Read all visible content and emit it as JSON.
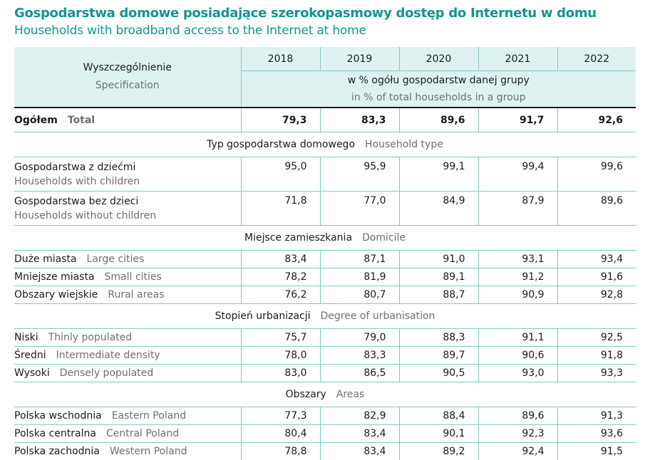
{
  "title_pl": "Gospodarstwa domowe posiadające szerokopasmowy dostęp do Internetu w domu",
  "title_en": "Households with broadband access to the Internet at home",
  "header": {
    "spec_pl": "Wyszczególnienie",
    "spec_en": "Specification",
    "years": [
      "2018",
      "2019",
      "2020",
      "2021",
      "2022"
    ],
    "unit_pl": "w % ogółu gospodarstw danej grupy",
    "unit_en": "in % of total households in a group"
  },
  "total": {
    "pl": "Ogółem",
    "en": "Total",
    "values": [
      "79,3",
      "83,3",
      "89,6",
      "91,7",
      "92,6"
    ]
  },
  "sections": [
    {
      "pl": "Typ gospodarstwa domowego",
      "en": "Household type",
      "rows": [
        {
          "pl": "Gospodarstwa z dziećmi",
          "en": "Households with children",
          "values": [
            "95,0",
            "95,9",
            "99,1",
            "99,4",
            "99,6"
          ]
        },
        {
          "pl": "Gospodarstwa bez dzieci",
          "en": "Households without children",
          "values": [
            "71,8",
            "77,0",
            "84,9",
            "87,9",
            "89,6"
          ]
        }
      ]
    },
    {
      "pl": "Miejsce zamieszkania",
      "en": "Domicile",
      "rows": [
        {
          "pl": "Duże miasta",
          "en": "Large cities",
          "values": [
            "83,4",
            "87,1",
            "91,0",
            "93,1",
            "93,4"
          ]
        },
        {
          "pl": "Mniejsze miasta",
          "en": "Small cities",
          "values": [
            "78,2",
            "81,9",
            "89,1",
            "91,2",
            "91,6"
          ]
        },
        {
          "pl": "Obszary wiejskie",
          "en": "Rural areas",
          "values": [
            "76,2",
            "80,7",
            "88,7",
            "90,9",
            "92,8"
          ]
        }
      ]
    },
    {
      "pl": "Stopień urbanizacji",
      "en": "Degree of urbanisation",
      "rows": [
        {
          "pl": "Niski",
          "en": "Thinly populated",
          "values": [
            "75,7",
            "79,0",
            "88,3",
            "91,1",
            "92,5"
          ]
        },
        {
          "pl": "Średni",
          "en": "Intermediate density",
          "values": [
            "78,0",
            "83,3",
            "89,7",
            "90,6",
            "91,8"
          ]
        },
        {
          "pl": "Wysoki",
          "en": "Densely populated",
          "values": [
            "83,0",
            "86,5",
            "90,5",
            "93,0",
            "93,3"
          ]
        }
      ]
    },
    {
      "pl": "Obszary",
      "en": "Areas",
      "rows": [
        {
          "pl": "Polska wschodnia",
          "en": "Eastern Poland",
          "values": [
            "77,3",
            "82,9",
            "88,4",
            "89,6",
            "91,3"
          ]
        },
        {
          "pl": "Polska centralna",
          "en": "Central Poland",
          "values": [
            "80,4",
            "83,4",
            "90,1",
            "92,3",
            "93,6"
          ]
        },
        {
          "pl": "Polska zachodnia",
          "en": "Western Poland",
          "values": [
            "78,8",
            "83,4",
            "89,2",
            "92,4",
            "91,5"
          ]
        }
      ]
    }
  ],
  "colors": {
    "title": "#13958e",
    "header_bg": "#dff2f2",
    "rule": "#7fc9c6"
  }
}
